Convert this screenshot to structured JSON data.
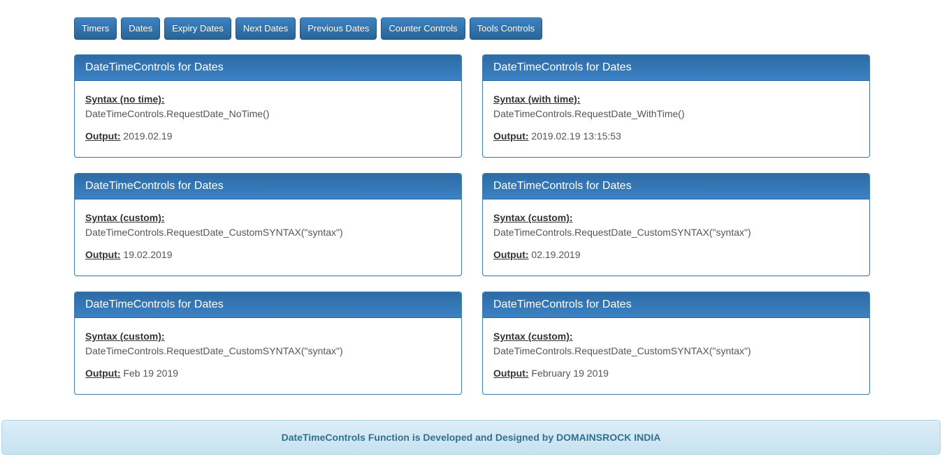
{
  "toolbar": {
    "buttons": [
      "Timers",
      "Dates",
      "Expiry Dates",
      "Next Dates",
      "Previous Dates",
      "Counter Controls",
      "Tools Controls"
    ]
  },
  "panels": [
    {
      "title": "DateTimeControls for Dates",
      "syntax_label": "Syntax (no time):",
      "syntax_code": "DateTimeControls.RequestDate_NoTime()",
      "output_label": "Output:",
      "output_value": "2019.02.19"
    },
    {
      "title": "DateTimeControls for Dates",
      "syntax_label": "Syntax (with time):",
      "syntax_code": "DateTimeControls.RequestDate_WithTime()",
      "output_label": "Output:",
      "output_value": "2019.02.19 13:15:53"
    },
    {
      "title": "DateTimeControls for Dates",
      "syntax_label": "Syntax (custom):",
      "syntax_code": "DateTimeControls.RequestDate_CustomSYNTAX(\"syntax\")",
      "output_label": "Output:",
      "output_value": "19.02.2019"
    },
    {
      "title": "DateTimeControls for Dates",
      "syntax_label": "Syntax (custom):",
      "syntax_code": "DateTimeControls.RequestDate_CustomSYNTAX(\"syntax\")",
      "output_label": "Output:",
      "output_value": "02.19.2019"
    },
    {
      "title": "DateTimeControls for Dates",
      "syntax_label": "Syntax (custom):",
      "syntax_code": "DateTimeControls.RequestDate_CustomSYNTAX(\"syntax\")",
      "output_label": "Output:",
      "output_value": "Feb 19 2019"
    },
    {
      "title": "DateTimeControls for Dates",
      "syntax_label": "Syntax (custom):",
      "syntax_code": "DateTimeControls.RequestDate_CustomSYNTAX(\"syntax\")",
      "output_label": "Output:",
      "output_value": "February 19 2019"
    }
  ],
  "footer": {
    "text": "DateTimeControls Function is Developed and Designed by DOMAINSROCK INDIA"
  },
  "colors": {
    "button_gradient_top": "#3b83c2",
    "button_gradient_bottom": "#2a6496",
    "button_border": "#245580",
    "panel_header_top": "#2d6ba5",
    "panel_header_bottom": "#3c82c4",
    "panel_border": "#3d7ab0",
    "body_label_text": "#333333",
    "body_value_text": "#555555",
    "footer_bg_top": "#ddeef8",
    "footer_bg_bottom": "#c7e1f0",
    "footer_border": "#aed4e8",
    "footer_text": "#31708f"
  }
}
